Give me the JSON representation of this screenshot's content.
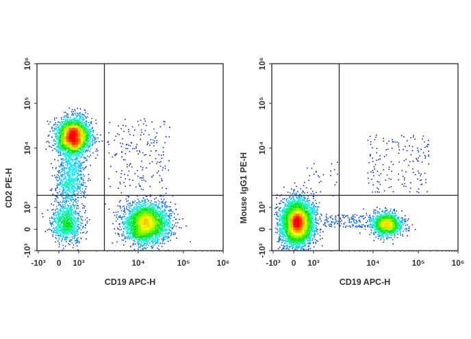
{
  "chart_data": [
    {
      "type": "scatter",
      "xlabel": "CD19 APC-H",
      "ylabel": "CD2 PE-H",
      "x_scale": "biexponential",
      "y_scale": "biexponential",
      "x_ticks": [
        "-10³",
        "0",
        "10³",
        "10⁴",
        "10⁵",
        "10⁶"
      ],
      "y_ticks": [
        "-10³",
        "0",
        "10³",
        "10⁴",
        "10⁵",
        "10⁶"
      ],
      "xlim": [
        -1000,
        1000000
      ],
      "ylim": [
        -1000,
        1000000
      ],
      "quadrant_gate": {
        "x": 2700,
        "y": 1600
      },
      "color_scale": "density (blue-cyan-green-yellow-red)",
      "populations": [
        {
          "center": [
            700,
            18000
          ],
          "events": 3000
        },
        {
          "center": [
            550,
            3000
          ],
          "events": 700
        },
        {
          "center": [
            350,
            300
          ],
          "events": 900
        },
        {
          "center": [
            15000,
            300
          ],
          "events": 3000
        },
        {
          "x_range": [
            3000,
            50000
          ],
          "y_range": [
            2000,
            50000
          ],
          "events": 180
        }
      ]
    },
    {
      "type": "scatter",
      "xlabel": "CD19 APC-H",
      "ylabel": "Mouse IgG1 PE-H",
      "x_scale": "biexponential",
      "y_scale": "biexponential",
      "x_ticks": [
        "-10³",
        "0",
        "10³",
        "10⁴",
        "10⁵",
        "10⁶"
      ],
      "y_ticks": [
        "-10³",
        "0",
        "10³",
        "10⁴",
        "10⁵",
        "10⁶"
      ],
      "xlim": [
        -1000,
        1000000
      ],
      "ylim": [
        -1000,
        1000000
      ],
      "quadrant_gate": {
        "x": 2700,
        "y": 1600
      },
      "color_scale": "density (blue-cyan-green-yellow-red)",
      "populations": [
        {
          "center": [
            150,
            300
          ],
          "events": 4000
        },
        {
          "center": [
            20000,
            250
          ],
          "events": 1400
        },
        {
          "x_range": [
            1500,
            10000
          ],
          "y_range": [
            100,
            700
          ],
          "events": 150
        },
        {
          "x_range": [
            8000,
            180000
          ],
          "y_range": [
            1800,
            20000
          ],
          "events": 160
        },
        {
          "x_range": [
            500,
            2500
          ],
          "y_range": [
            1600,
            8000
          ],
          "events": 25
        }
      ]
    }
  ]
}
